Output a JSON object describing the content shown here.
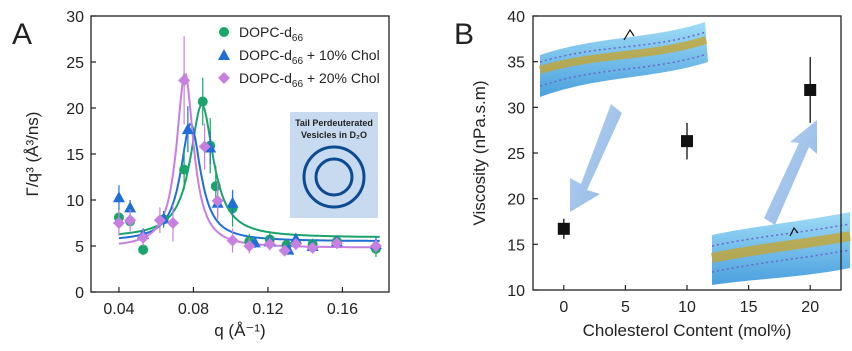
{
  "chart_data": [
    {
      "panel": "A",
      "type": "scatter",
      "xlabel": "q (Å⁻¹)",
      "ylabel": "Γ/q³ (Å³/ns)",
      "xlim": [
        0.025,
        0.185
      ],
      "ylim": [
        0,
        30
      ],
      "xticks": [
        "0.04",
        "0.08",
        "0.12",
        "0.16"
      ],
      "yticks": [
        "0",
        "5",
        "10",
        "15",
        "20",
        "25",
        "30"
      ],
      "legend_position": "top-right",
      "inset": {
        "line1": "Tail Perdeuterated",
        "line2": "Vesicles in D₂O"
      },
      "series": [
        {
          "name_main": "DOPC-d",
          "name_sub": "66",
          "name_suffix": "",
          "color": "#1aa36a",
          "marker": "circle",
          "points": [
            [
              0.04,
              8.1,
              1.0
            ],
            [
              0.046,
              7.7,
              0.8
            ],
            [
              0.053,
              4.6,
              0.6
            ],
            [
              0.064,
              7.9,
              0.9
            ],
            [
              0.075,
              13.3,
              2.2
            ],
            [
              0.085,
              20.7,
              2.6
            ],
            [
              0.089,
              15.9,
              3.0
            ],
            [
              0.092,
              11.5,
              2.2
            ],
            [
              0.101,
              9.1,
              2.0
            ],
            [
              0.11,
              5.5,
              0.8
            ],
            [
              0.121,
              5.7,
              0.7
            ],
            [
              0.13,
              5.1,
              0.6
            ],
            [
              0.135,
              5.3,
              0.6
            ],
            [
              0.144,
              5.2,
              0.6
            ],
            [
              0.157,
              5.5,
              0.6
            ],
            [
              0.178,
              4.7,
              0.9
            ]
          ],
          "fit": {
            "base": 5.9,
            "amp": 14.5,
            "center": 0.0845,
            "width": 0.0075
          }
        },
        {
          "name_main": "DOPC-d",
          "name_sub": "66",
          "name_suffix": " + 10% Chol",
          "color": "#1f6fd6",
          "marker": "triangle",
          "points": [
            [
              0.04,
              10.3,
              1.3
            ],
            [
              0.046,
              9.2,
              0.8
            ],
            [
              0.053,
              6.3,
              0.6
            ],
            [
              0.064,
              8.0,
              0.8
            ],
            [
              0.077,
              17.7,
              2.5
            ],
            [
              0.089,
              15.7,
              1.8
            ],
            [
              0.093,
              9.7,
              1.5
            ],
            [
              0.101,
              9.7,
              1.3
            ],
            [
              0.113,
              5.4,
              0.6
            ],
            [
              0.121,
              5.5,
              0.6
            ],
            [
              0.131,
              4.6,
              0.5
            ],
            [
              0.135,
              5.8,
              0.5
            ],
            [
              0.144,
              5.0,
              0.5
            ],
            [
              0.157,
              5.5,
              0.5
            ],
            [
              0.178,
              5.2,
              0.8
            ]
          ],
          "fit": {
            "base": 5.5,
            "amp": 12.8,
            "center": 0.0785,
            "width": 0.0065
          }
        },
        {
          "name_main": "DOPC-d",
          "name_sub": "66",
          "name_suffix": " + 20% Chol",
          "color": "#c77fe0",
          "marker": "diamond",
          "points": [
            [
              0.04,
              7.5,
              1.4
            ],
            [
              0.046,
              7.8,
              1.2
            ],
            [
              0.053,
              5.9,
              0.9
            ],
            [
              0.062,
              7.8,
              1.4
            ],
            [
              0.069,
              7.5,
              2.0
            ],
            [
              0.075,
              23.0,
              4.8
            ],
            [
              0.086,
              15.8,
              2.5
            ],
            [
              0.093,
              9.9,
              2.0
            ],
            [
              0.101,
              5.6,
              1.3
            ],
            [
              0.11,
              5.0,
              0.8
            ],
            [
              0.121,
              5.2,
              0.7
            ],
            [
              0.129,
              4.5,
              0.6
            ],
            [
              0.135,
              5.2,
              0.6
            ],
            [
              0.144,
              4.8,
              0.5
            ],
            [
              0.157,
              5.3,
              0.5
            ],
            [
              0.178,
              5.0,
              0.7
            ]
          ],
          "fit": {
            "base": 4.8,
            "amp": 19.0,
            "center": 0.0755,
            "width": 0.0055
          }
        }
      ]
    },
    {
      "panel": "B",
      "type": "scatter",
      "xlabel": "Cholesterol Content (mol%)",
      "ylabel": "Viscosity (nPa.s.m)",
      "xlim": [
        -2.5,
        22.5
      ],
      "ylim": [
        10,
        40
      ],
      "xticks": [
        "0",
        "5",
        "10",
        "15",
        "20"
      ],
      "yticks": [
        "10",
        "15",
        "20",
        "25",
        "30",
        "35",
        "40"
      ],
      "color": "#111111",
      "marker": "square",
      "points": [
        [
          0,
          16.7,
          1.1
        ],
        [
          10,
          26.3,
          2.0
        ],
        [
          20,
          31.9,
          3.6
        ]
      ]
    }
  ],
  "panel_labels": {
    "a": "A",
    "b": "B"
  }
}
